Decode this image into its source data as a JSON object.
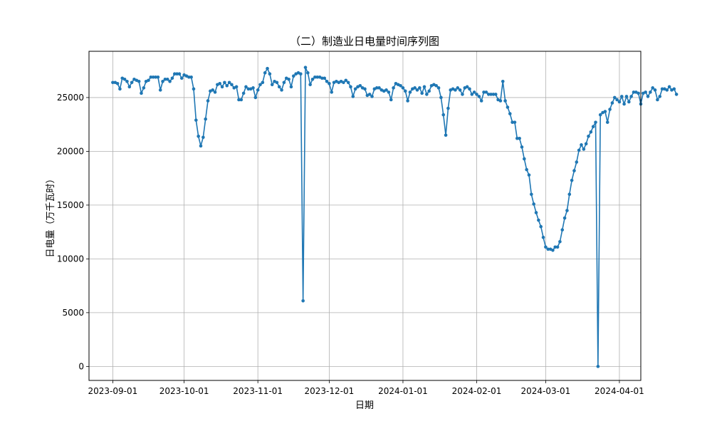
{
  "chart_data": {
    "type": "line",
    "title": "（二）制造业日电量时间序列图",
    "xlabel": "日期",
    "ylabel": "日电量（万千瓦时）",
    "grid": true,
    "x_ticks": [
      "2023-09-01",
      "2023-10-01",
      "2023-11-01",
      "2023-12-01",
      "2024-01-01",
      "2024-02-01",
      "2024-03-01",
      "2024-04-01"
    ],
    "y_ticks": [
      0,
      5000,
      10000,
      15000,
      20000,
      25000
    ],
    "xlim": [
      "2023-08-22",
      "2024-04-10"
    ],
    "ylim": [
      -1300,
      29300
    ],
    "series_color": "#1f77b4",
    "series": [
      {
        "start_date": "2023-09-01",
        "values": [
          26400,
          26400,
          26300,
          25800,
          26800,
          26700,
          26500,
          26000,
          26400,
          26700,
          26600,
          26500,
          25400,
          25900,
          26500,
          26600,
          26900,
          26900,
          26900,
          26900,
          25700,
          26500,
          26700,
          26700,
          26500,
          26800,
          27200,
          27200,
          27200,
          26800,
          27100,
          27000,
          26900,
          26900,
          25800,
          22900,
          21400,
          20500,
          21300,
          23000,
          24700,
          25600,
          25700,
          25500,
          26200,
          26300,
          26000,
          26400,
          26100,
          26400,
          26200,
          25900,
          26000,
          24800,
          24800,
          25400,
          26000,
          25800,
          25800,
          25900,
          25000,
          25700,
          26200,
          26400,
          27300,
          27700,
          27200,
          26200,
          26500,
          26400,
          26000,
          25700,
          26400,
          26800,
          26700,
          26000,
          27000,
          27200,
          27300,
          27200,
          6100,
          27800,
          27300,
          26200,
          26700,
          26900,
          26900,
          26900,
          26800,
          26800,
          26500,
          26300,
          25500,
          26400,
          26500,
          26400,
          26500,
          26400,
          26600,
          26400,
          26000,
          25100,
          25800,
          26000,
          26100,
          25900,
          25800,
          25200,
          25300,
          25100,
          25800,
          25900,
          25900,
          25700,
          25600,
          25700,
          25500,
          24800,
          25900,
          26300,
          26200,
          26100,
          25900,
          25600,
          24700,
          25500,
          25800,
          25900,
          25700,
          25900,
          25400,
          26000,
          25300,
          25600,
          26100,
          26200,
          26100,
          25900,
          25000,
          23400,
          21500,
          24000,
          25700,
          25800,
          25700,
          25900,
          25700,
          25300,
          25900,
          26000,
          25800,
          25300,
          25500,
          25300,
          25100,
          24700,
          25500,
          25500,
          25300,
          25300,
          25300,
          25300,
          24800,
          24700,
          26500,
          24700,
          24100,
          23500,
          22700,
          22700,
          21200,
          21200,
          20400,
          19300,
          18300,
          17800,
          16000,
          15100,
          14300,
          13600,
          13000,
          12000,
          11100,
          10900,
          10900,
          10800,
          11100,
          11100,
          11600,
          12700,
          13800,
          14500,
          16000,
          17300,
          18200,
          19000,
          20100,
          20600,
          20200,
          20700,
          21400,
          21800,
          22300,
          22700,
          0,
          23400,
          23600,
          23700,
          22700,
          23900,
          24500,
          25000,
          24800,
          24600,
          25100,
          24400,
          25100,
          24600,
          25100,
          25500,
          25500,
          25400,
          24400,
          25400,
          25500,
          25100,
          25500,
          25900,
          25700,
          24800,
          25100,
          25800,
          25800,
          25700,
          26000,
          25700,
          25800,
          25300
        ]
      }
    ]
  }
}
